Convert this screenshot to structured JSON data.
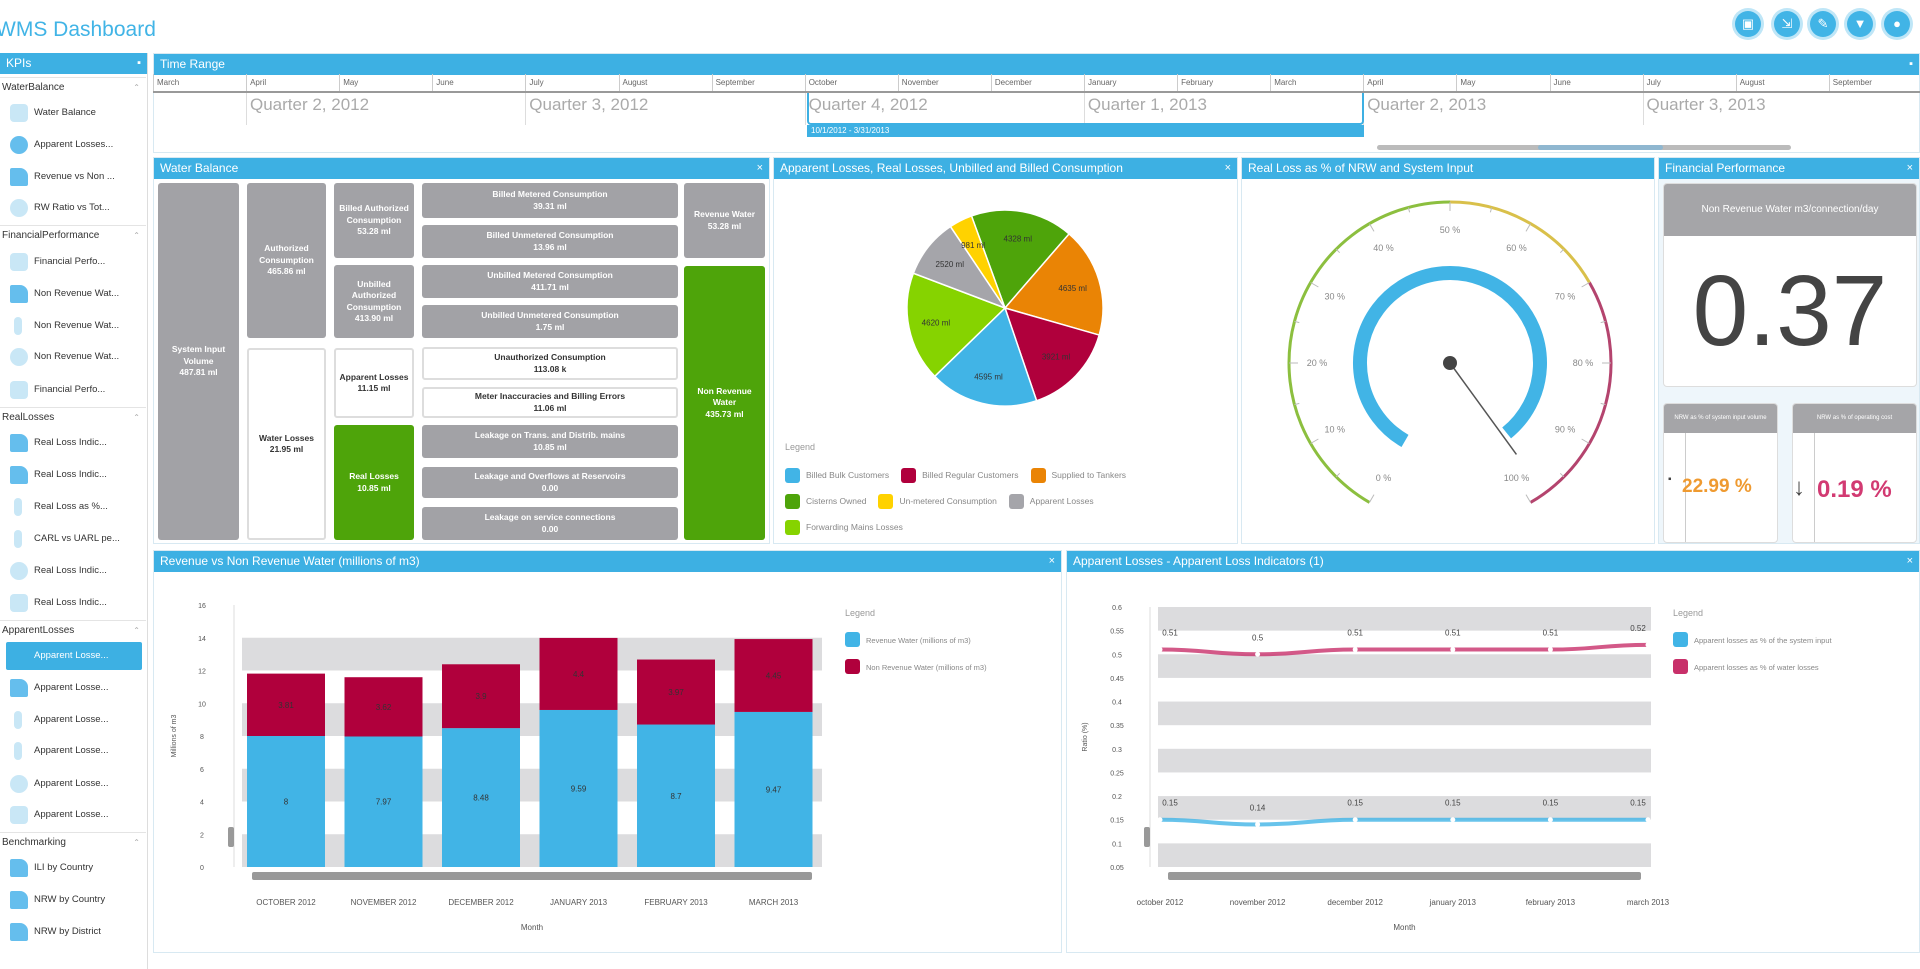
{
  "app": {
    "title": "WMS Dashboard"
  },
  "toolbar": {
    "buttons": [
      {
        "icon": "save-icon",
        "glyph": "▣"
      },
      {
        "icon": "export-icon",
        "glyph": "⇲"
      },
      {
        "icon": "edit-icon",
        "glyph": "✎"
      },
      {
        "icon": "filter-icon",
        "glyph": "▼"
      },
      {
        "icon": "settings-icon",
        "glyph": "●"
      }
    ]
  },
  "sidebar": {
    "title": "KPIs",
    "groups": [
      {
        "label": "WaterBalance",
        "items": [
          {
            "label": "Water Balance",
            "icon": "cloud-icon"
          },
          {
            "label": "Apparent Losses...",
            "icon": "pie-icon"
          },
          {
            "label": "Revenue vs Non ...",
            "icon": "bar-chart-icon"
          },
          {
            "label": "RW Ratio vs Tot...",
            "icon": "gauge-icon"
          }
        ]
      },
      {
        "label": "FinancialPerformance",
        "items": [
          {
            "label": "Financial Perfo...",
            "icon": "kpi-icon"
          },
          {
            "label": "Non Revenue Wat...",
            "icon": "bar-chart-icon"
          },
          {
            "label": "Non Revenue Wat...",
            "icon": "bullet-icon"
          },
          {
            "label": "Non Revenue Wat...",
            "icon": "gauge-icon"
          },
          {
            "label": "Financial Perfo...",
            "icon": "grid-icon"
          }
        ]
      },
      {
        "label": "RealLosses",
        "items": [
          {
            "label": "Real Loss Indic...",
            "icon": "bar-chart-icon"
          },
          {
            "label": "Real Loss Indic...",
            "icon": "bar-chart-icon"
          },
          {
            "label": "Real Loss as %...",
            "icon": "bullet-icon"
          },
          {
            "label": "CARL vs UARL pe...",
            "icon": "bullet-icon"
          },
          {
            "label": "Real Loss Indic...",
            "icon": "gauge-icon"
          },
          {
            "label": "Real Loss Indic...",
            "icon": "grid-icon"
          }
        ]
      },
      {
        "label": "ApparentLosses",
        "items": [
          {
            "label": "Apparent Losse...",
            "icon": "line-chart-icon",
            "selected": true
          },
          {
            "label": "Apparent Losse...",
            "icon": "bar-chart-icon"
          },
          {
            "label": "Apparent Losse...",
            "icon": "bullet-icon"
          },
          {
            "label": "Apparent Losse...",
            "icon": "bullet-icon"
          },
          {
            "label": "Apparent Losse...",
            "icon": "gauge-icon"
          },
          {
            "label": "Apparent Losse...",
            "icon": "grid-icon"
          }
        ]
      },
      {
        "label": "Benchmarking",
        "items": [
          {
            "label": "ILI by Country",
            "icon": "bar-chart-icon"
          },
          {
            "label": "NRW by Country",
            "icon": "bar-chart-icon"
          },
          {
            "label": "NRW by District",
            "icon": "bar-chart-icon"
          }
        ]
      }
    ]
  },
  "time_range": {
    "title": "Time Range",
    "months": [
      "March",
      "April",
      "May",
      "June",
      "July",
      "August",
      "September",
      "October",
      "November",
      "December",
      "January",
      "February",
      "March",
      "April",
      "May",
      "June",
      "July",
      "August",
      "September"
    ],
    "quarters": [
      "Quarter 2, 2012",
      "Quarter 3, 2012",
      "Quarter 4, 2012",
      "Quarter 1, 2013",
      "Quarter 2, 2013",
      "Quarter 3, 2013"
    ],
    "selection_label": "10/1/2012 - 3/31/2013"
  },
  "water_balance": {
    "title": "Water Balance",
    "boxes": [
      {
        "label": "System Input Volume",
        "value": "487.81 ml"
      },
      {
        "label": "Authorized Consumption",
        "value": "465.86 ml"
      },
      {
        "label": "Water Losses",
        "value": "21.95 ml"
      },
      {
        "label": "Billed Authorized Consumption",
        "value": "53.28 ml"
      },
      {
        "label": "Unbilled Authorized Consumption",
        "value": "413.90 ml"
      },
      {
        "label": "Apparent Losses",
        "value": "11.15 ml"
      },
      {
        "label": "Real Losses",
        "value": "10.85 ml"
      },
      {
        "label": "Billed Metered Consumption",
        "value": "39.31 ml"
      },
      {
        "label": "Billed Unmetered Consumption",
        "value": "13.96 ml"
      },
      {
        "label": "Unbilled Metered Consumption",
        "value": "411.71 ml"
      },
      {
        "label": "Unbilled Unmetered Consumption",
        "value": "1.75 ml"
      },
      {
        "label": "Unauthorized Consumption",
        "value": "113.08 k"
      },
      {
        "label": "Meter Inaccuracies and Billing Errors",
        "value": "11.06 ml"
      },
      {
        "label": "Leakage on Trans. and Distrib. mains",
        "value": "10.85 ml"
      },
      {
        "label": "Leakage and Overflows at Reservoirs",
        "value": "0.00"
      },
      {
        "label": "Leakage on service connections",
        "value": "0.00"
      },
      {
        "label": "Revenue Water",
        "value": "53.28 ml"
      },
      {
        "label": "Non Revenue Water",
        "value": "435.73 ml"
      }
    ]
  },
  "chart_data": [
    {
      "type": "pie",
      "title": "Apparent Losses, Real Losses, Unbilled and Billed Consumption",
      "legend_title": "Legend",
      "slices": [
        {
          "name": "Cisterns Owned",
          "value": 4328,
          "label": "4328 ml",
          "color": "#4ea40a"
        },
        {
          "name": "Supplied to Tankers",
          "value": 4635,
          "label": "4635 ml",
          "color": "#ea8405"
        },
        {
          "name": "Billed Regular Customers",
          "value": 3921,
          "label": "3921 ml",
          "color": "#b0003c"
        },
        {
          "name": "Billed Bulk Customers",
          "value": 4595,
          "label": "4595 ml",
          "color": "#41b4e6"
        },
        {
          "name": "Forwarding Mains Losses",
          "value": 4620,
          "label": "4620 ml",
          "color": "#86d300"
        },
        {
          "name": "Apparent Losses",
          "value": 2520,
          "label": "2520 ml",
          "color": "#a5a5aa"
        },
        {
          "name": "Un-metered Consumption",
          "value": 981,
          "label": "981 ml",
          "color": "#ffd200"
        }
      ],
      "legend_order": [
        "Billed Bulk Customers",
        "Billed Regular Customers",
        "Supplied to Tankers",
        "Cisterns Owned",
        "Un-metered Consumption",
        "Apparent Losses",
        "Forwarding Mains Losses"
      ]
    },
    {
      "type": "gauge",
      "title": "Real Loss as % of NRW and System Input",
      "min": 0,
      "max": 100,
      "value": 98,
      "range_bar_value": 97,
      "ticks": [
        "0 %",
        "10 %",
        "20 %",
        "30 %",
        "40 %",
        "50 %",
        "60 %",
        "70 %",
        "80 %",
        "90 %",
        "100 %"
      ],
      "bands": [
        {
          "from": 0,
          "to": 50,
          "color": "#8cbf3f"
        },
        {
          "from": 50,
          "to": 70,
          "color": "#d9c04a"
        },
        {
          "from": 70,
          "to": 100,
          "color": "#b4446e"
        }
      ]
    },
    {
      "type": "bar",
      "stacked": true,
      "title": "Revenue vs Non Revenue Water (millions of m3)",
      "xlabel": "Month",
      "ylabel": "Millions of m3",
      "ylim": [
        0,
        16
      ],
      "yticks": [
        0,
        2,
        4,
        6,
        8,
        10,
        12,
        14,
        16
      ],
      "categories": [
        "OCTOBER 2012",
        "NOVEMBER 2012",
        "DECEMBER 2012",
        "JANUARY 2013",
        "FEBRUARY 2013",
        "MARCH 2013"
      ],
      "legend_title": "Legend",
      "series": [
        {
          "name": "Revenue Water (millions of m3)",
          "color": "#41b4e6",
          "values": [
            8,
            7.97,
            8.48,
            9.59,
            8.7,
            9.47
          ]
        },
        {
          "name": "Non Revenue Water (millions of m3)",
          "color": "#b0003c",
          "values": [
            3.81,
            3.62,
            3.9,
            4.4,
            3.97,
            4.45
          ]
        }
      ]
    },
    {
      "type": "line",
      "title": "Apparent Losses - Apparent Loss Indicators (1)",
      "xlabel": "Month",
      "ylabel": "Ratio (%)",
      "ylim": [
        0.05,
        0.6
      ],
      "yticks": [
        0.05,
        0.1,
        0.15,
        0.2,
        0.25,
        0.3,
        0.35,
        0.4,
        0.45,
        0.5,
        0.55,
        0.6
      ],
      "categories": [
        "october 2012",
        "november 2012",
        "december 2012",
        "january 2013",
        "february 2013",
        "march 2013"
      ],
      "legend_title": "Legend",
      "series": [
        {
          "name": "Apparent losses as % of the system input",
          "color": "#41b4e6",
          "values": [
            0.15,
            0.14,
            0.15,
            0.15,
            0.15,
            0.15
          ]
        },
        {
          "name": "Apparent losses as % of water losses",
          "color": "#c8306a",
          "values": [
            0.51,
            0.5,
            0.51,
            0.51,
            0.51,
            0.52
          ]
        }
      ]
    }
  ],
  "financial": {
    "title": "Financial Performance",
    "main_card": {
      "header": "Non Revenue Water m3/connection/day",
      "value": "0.37"
    },
    "cards": [
      {
        "header": "NRW as % of system input volume",
        "value": "22.99 %",
        "icon": "neutral-icon",
        "glyph": "▪",
        "color": "#ef9a30"
      },
      {
        "header": "NRW as % of operating cost",
        "value": "0.19 %",
        "icon": "arrow-down-icon",
        "glyph": "↓",
        "color": "#d23a72"
      }
    ]
  }
}
